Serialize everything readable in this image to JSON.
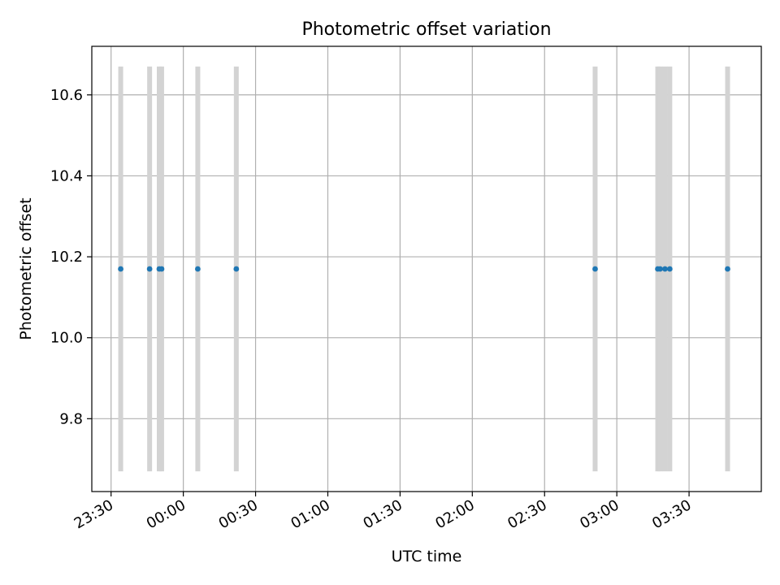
{
  "chart_data": {
    "type": "scatter",
    "title": "Photometric offset variation",
    "xlabel": "UTC time",
    "ylabel": "Photometric offset",
    "grid": true,
    "xlim": [
      "23:22",
      "04:00"
    ],
    "ylim": [
      9.62,
      10.72
    ],
    "x_ticks": [
      "23:30",
      "00:00",
      "00:30",
      "01:00",
      "01:30",
      "02:00",
      "02:30",
      "03:00",
      "03:30"
    ],
    "y_ticks": [
      "9.8",
      "10.0",
      "10.2",
      "10.4",
      "10.6"
    ],
    "series": [
      {
        "color": "#1f77b4",
        "x": [
          "23:34",
          "23:46",
          "23:50",
          "23:51",
          "00:06",
          "00:22",
          "02:51",
          "03:17",
          "03:18",
          "03:20",
          "03:22",
          "03:46"
        ],
        "y": [
          10.17,
          10.17,
          10.17,
          10.17,
          10.17,
          10.17,
          10.17,
          10.17,
          10.17,
          10.17,
          10.17,
          10.17
        ],
        "y_lower": [
          9.67,
          9.67,
          9.67,
          9.67,
          9.67,
          9.67,
          9.67,
          9.67,
          9.67,
          9.67,
          9.67,
          9.67
        ],
        "y_upper": [
          10.67,
          10.67,
          10.67,
          10.67,
          10.67,
          10.67,
          10.67,
          10.67,
          10.67,
          10.67,
          10.67,
          10.67
        ]
      }
    ],
    "errorbar_color": "#d3d3d3",
    "grid_color": "#b0b0b0"
  }
}
